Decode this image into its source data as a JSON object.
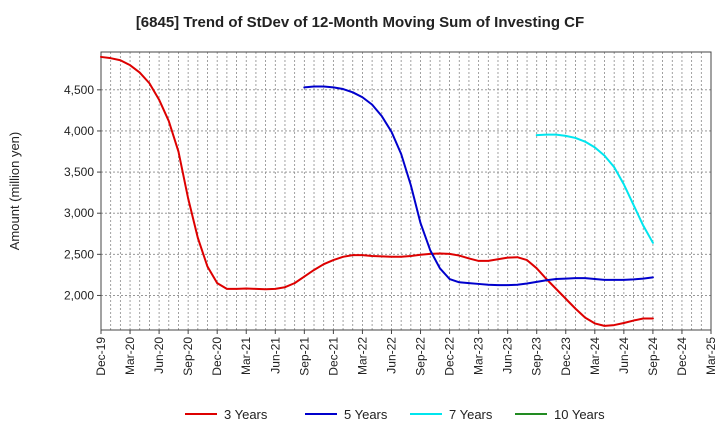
{
  "chart_data": {
    "type": "line",
    "title": "[6845]  Trend of StDev of 12-Month Moving Sum of Investing CF",
    "ylabel": "Amount (million yen)",
    "xlabel": "",
    "ylim": [
      1580,
      4960
    ],
    "yticks": [
      2000,
      2500,
      3000,
      3500,
      4000,
      4500
    ],
    "ytick_labels": [
      "2,000",
      "2,500",
      "3,000",
      "3,500",
      "4,000",
      "4,500"
    ],
    "x_start": "2019-12",
    "x_end": "2025-03",
    "xtick_labels": [
      "Dec-19",
      "Mar-20",
      "Jun-20",
      "Sep-20",
      "Dec-20",
      "Mar-21",
      "Jun-21",
      "Sep-21",
      "Dec-21",
      "Mar-22",
      "Jun-22",
      "Sep-22",
      "Dec-22",
      "Mar-23",
      "Jun-23",
      "Sep-23",
      "Dec-23",
      "Mar-24",
      "Jun-24",
      "Sep-24",
      "Dec-24",
      "Mar-25"
    ],
    "grid": true,
    "legend_position": "bottom",
    "series": [
      {
        "name": "3 Years",
        "color": "#dd0000",
        "points": [
          [
            "2019-12",
            4900
          ],
          [
            "2020-01",
            4885
          ],
          [
            "2020-02",
            4860
          ],
          [
            "2020-03",
            4800
          ],
          [
            "2020-04",
            4710
          ],
          [
            "2020-05",
            4580
          ],
          [
            "2020-06",
            4380
          ],
          [
            "2020-07",
            4120
          ],
          [
            "2020-08",
            3750
          ],
          [
            "2020-09",
            3180
          ],
          [
            "2020-10",
            2700
          ],
          [
            "2020-11",
            2350
          ],
          [
            "2020-12",
            2150
          ],
          [
            "2021-01",
            2080
          ],
          [
            "2021-02",
            2080
          ],
          [
            "2021-03",
            2085
          ],
          [
            "2021-04",
            2080
          ],
          [
            "2021-05",
            2075
          ],
          [
            "2021-06",
            2080
          ],
          [
            "2021-07",
            2100
          ],
          [
            "2021-08",
            2150
          ],
          [
            "2021-09",
            2230
          ],
          [
            "2021-10",
            2310
          ],
          [
            "2021-11",
            2380
          ],
          [
            "2021-12",
            2430
          ],
          [
            "2022-01",
            2470
          ],
          [
            "2022-02",
            2490
          ],
          [
            "2022-03",
            2490
          ],
          [
            "2022-04",
            2480
          ],
          [
            "2022-05",
            2475
          ],
          [
            "2022-06",
            2470
          ],
          [
            "2022-07",
            2470
          ],
          [
            "2022-08",
            2480
          ],
          [
            "2022-09",
            2495
          ],
          [
            "2022-10",
            2505
          ],
          [
            "2022-11",
            2510
          ],
          [
            "2022-12",
            2505
          ],
          [
            "2023-01",
            2485
          ],
          [
            "2023-02",
            2450
          ],
          [
            "2023-03",
            2420
          ],
          [
            "2023-04",
            2420
          ],
          [
            "2023-05",
            2440
          ],
          [
            "2023-06",
            2460
          ],
          [
            "2023-07",
            2465
          ],
          [
            "2023-08",
            2430
          ],
          [
            "2023-09",
            2330
          ],
          [
            "2023-10",
            2200
          ],
          [
            "2023-11",
            2080
          ],
          [
            "2023-12",
            1960
          ],
          [
            "2024-01",
            1840
          ],
          [
            "2024-02",
            1730
          ],
          [
            "2024-03",
            1660
          ],
          [
            "2024-04",
            1630
          ],
          [
            "2024-05",
            1640
          ],
          [
            "2024-06",
            1665
          ],
          [
            "2024-07",
            1695
          ],
          [
            "2024-08",
            1720
          ],
          [
            "2024-09",
            1720
          ]
        ]
      },
      {
        "name": "5 Years",
        "color": "#0000cc",
        "points": [
          [
            "2021-09",
            4530
          ],
          [
            "2021-10",
            4540
          ],
          [
            "2021-11",
            4540
          ],
          [
            "2021-12",
            4530
          ],
          [
            "2022-01",
            4510
          ],
          [
            "2022-02",
            4470
          ],
          [
            "2022-03",
            4410
          ],
          [
            "2022-04",
            4320
          ],
          [
            "2022-05",
            4180
          ],
          [
            "2022-06",
            3990
          ],
          [
            "2022-07",
            3720
          ],
          [
            "2022-08",
            3340
          ],
          [
            "2022-09",
            2880
          ],
          [
            "2022-10",
            2550
          ],
          [
            "2022-11",
            2330
          ],
          [
            "2022-12",
            2200
          ],
          [
            "2023-01",
            2160
          ],
          [
            "2023-02",
            2150
          ],
          [
            "2023-03",
            2140
          ],
          [
            "2023-04",
            2130
          ],
          [
            "2023-05",
            2125
          ],
          [
            "2023-06",
            2125
          ],
          [
            "2023-07",
            2130
          ],
          [
            "2023-08",
            2145
          ],
          [
            "2023-09",
            2165
          ],
          [
            "2023-10",
            2185
          ],
          [
            "2023-11",
            2200
          ],
          [
            "2023-12",
            2205
          ],
          [
            "2024-01",
            2210
          ],
          [
            "2024-02",
            2210
          ],
          [
            "2024-03",
            2200
          ],
          [
            "2024-04",
            2190
          ],
          [
            "2024-05",
            2190
          ],
          [
            "2024-06",
            2190
          ],
          [
            "2024-07",
            2195
          ],
          [
            "2024-08",
            2205
          ],
          [
            "2024-09",
            2220
          ]
        ]
      },
      {
        "name": "7 Years",
        "color": "#00e5ee",
        "points": [
          [
            "2023-09",
            3950
          ],
          [
            "2023-10",
            3955
          ],
          [
            "2023-11",
            3955
          ],
          [
            "2023-12",
            3940
          ],
          [
            "2024-01",
            3915
          ],
          [
            "2024-02",
            3870
          ],
          [
            "2024-03",
            3800
          ],
          [
            "2024-04",
            3700
          ],
          [
            "2024-05",
            3560
          ],
          [
            "2024-06",
            3350
          ],
          [
            "2024-07",
            3100
          ],
          [
            "2024-08",
            2850
          ],
          [
            "2024-09",
            2640
          ]
        ]
      },
      {
        "name": "10 Years",
        "color": "#228b22",
        "points": []
      }
    ]
  }
}
